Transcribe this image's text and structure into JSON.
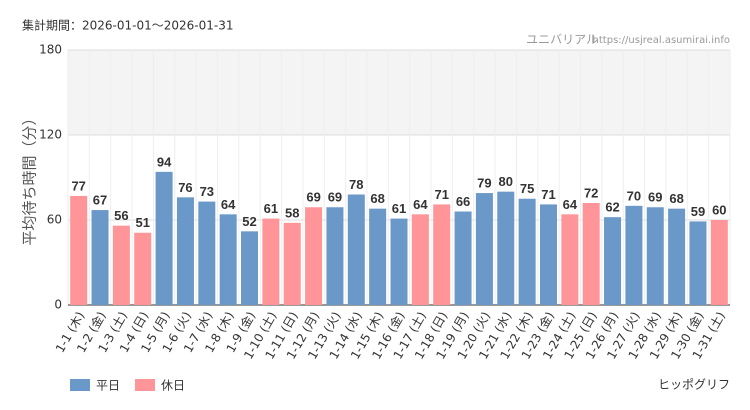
{
  "chart_data": {
    "type": "bar",
    "title": "集計期間：2026-01-01～2026-01-31",
    "source": "ユニバリアル",
    "url": "https://usjreal.asumirai.info",
    "attraction": "ヒッポグリフ",
    "y_label": "平均待ち時間（分）",
    "categories": [
      "1-1 (木)",
      "1-2 (金)",
      "1-3 (土)",
      "1-4 (日)",
      "1-5 (月)",
      "1-6 (火)",
      "1-7 (水)",
      "1-8 (木)",
      "1-9 (金)",
      "1-10 (土)",
      "1-11 (日)",
      "1-12 (月)",
      "1-13 (火)",
      "1-14 (水)",
      "1-15 (木)",
      "1-16 (金)",
      "1-17 (土)",
      "1-18 (日)",
      "1-19 (月)",
      "1-20 (火)",
      "1-21 (水)",
      "1-22 (木)",
      "1-23 (金)",
      "1-24 (土)",
      "1-25 (日)",
      "1-26 (月)",
      "1-27 (火)",
      "1-28 (水)",
      "1-29 (木)",
      "1-30 (金)",
      "1-31 (土)"
    ],
    "values": [
      77,
      67,
      56,
      51,
      94,
      76,
      73,
      64,
      52,
      61,
      58,
      69,
      69,
      78,
      68,
      61,
      64,
      71,
      66,
      79,
      80,
      75,
      71,
      64,
      72,
      62,
      70,
      69,
      68,
      59,
      60
    ],
    "colors": [
      "#ff9598",
      "#6a98c8",
      "#ff9598",
      "#ff9598",
      "#6a98c8",
      "#6a98c8",
      "#6a98c8",
      "#6a98c8",
      "#6a98c8",
      "#ff9598",
      "#ff9598",
      "#ff9598",
      "#6a98c8",
      "#6a98c8",
      "#6a98c8",
      "#6a98c8",
      "#ff9598",
      "#ff9598",
      "#6a98c8",
      "#6a98c8",
      "#6a98c8",
      "#6a98c8",
      "#6a98c8",
      "#ff9598",
      "#ff9598",
      "#6a98c8",
      "#6a98c8",
      "#6a98c8",
      "#6a98c8",
      "#6a98c8",
      "#ff9598"
    ],
    "legend": [
      {
        "name": "平日",
        "color": "#6a98c8"
      },
      {
        "name": "休日",
        "color": "#ff9598"
      }
    ],
    "ylim": [
      0,
      180
    ],
    "yticks": [
      0,
      60,
      120,
      180
    ],
    "grid": true
  }
}
